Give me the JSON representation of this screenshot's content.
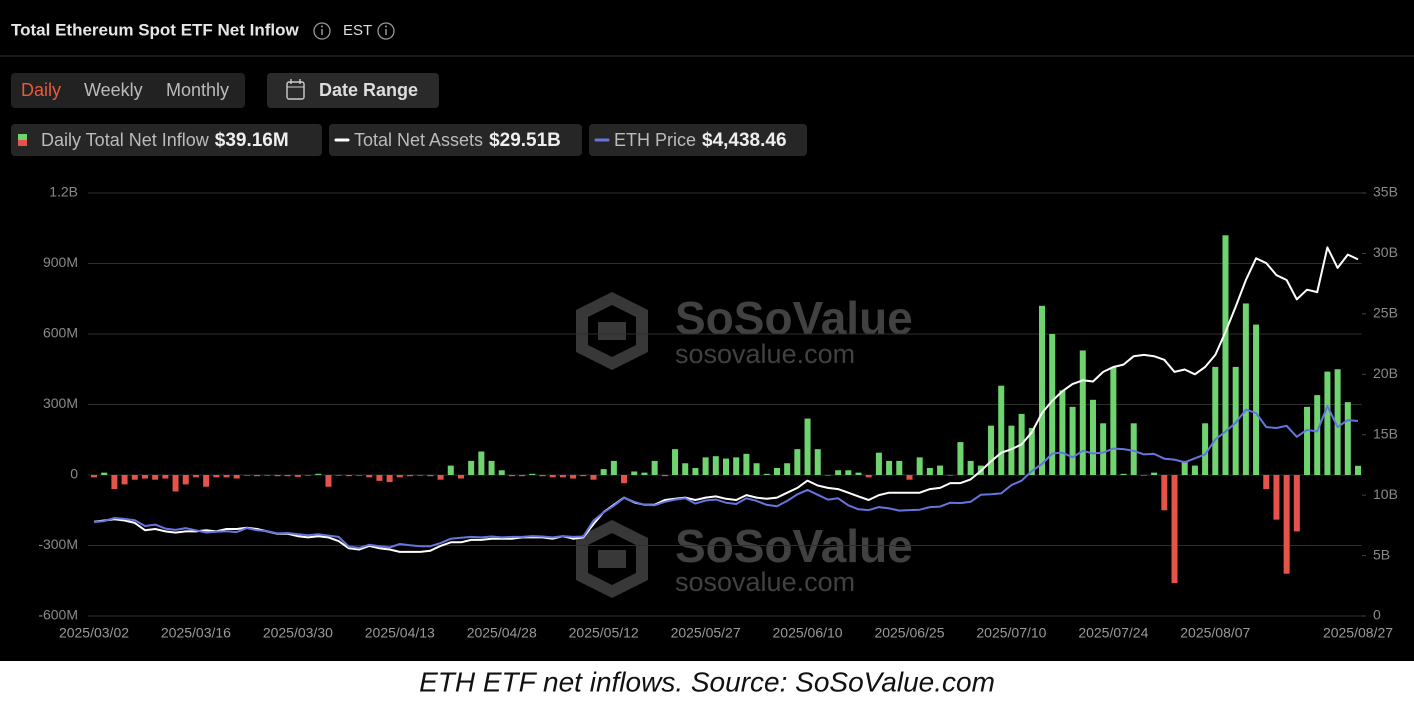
{
  "header": {
    "title": "Total Ethereum Spot ETF Net Inflow",
    "timezone": "EST"
  },
  "tabs": [
    "Daily",
    "Weekly",
    "Monthly"
  ],
  "date_range": "Date Range",
  "watermark": {
    "brand": "SoSoValue",
    "url": "sosovalue.com"
  },
  "chart_data": {
    "type": "combo",
    "categories": [
      "2025/03/02",
      null,
      null,
      null,
      null,
      null,
      null,
      null,
      null,
      null,
      "2025/03/16",
      null,
      null,
      null,
      null,
      null,
      null,
      null,
      null,
      null,
      "2025/03/30",
      null,
      null,
      null,
      null,
      null,
      null,
      null,
      null,
      null,
      "2025/04/13",
      null,
      null,
      null,
      null,
      null,
      null,
      null,
      null,
      null,
      "2025/04/28",
      null,
      null,
      null,
      null,
      null,
      null,
      null,
      null,
      null,
      "2025/05/12",
      null,
      null,
      null,
      null,
      null,
      null,
      null,
      null,
      null,
      "2025/05/27",
      null,
      null,
      null,
      null,
      null,
      null,
      null,
      null,
      null,
      "2025/06/10",
      null,
      null,
      null,
      null,
      null,
      null,
      null,
      null,
      null,
      "2025/06/25",
      null,
      null,
      null,
      null,
      null,
      null,
      null,
      null,
      null,
      "2025/07/10",
      null,
      null,
      null,
      null,
      null,
      null,
      null,
      null,
      null,
      "2025/07/24",
      null,
      null,
      null,
      null,
      null,
      null,
      null,
      null,
      null,
      "2025/08/07",
      null,
      null,
      null,
      null,
      null,
      null,
      null,
      null,
      null,
      null,
      null,
      null,
      null,
      "2025/08/27"
    ],
    "ylim": [
      -600,
      1200
    ],
    "yticks": [
      {
        "value": 1200,
        "label": "1.2B"
      },
      {
        "value": 900,
        "label": "900M"
      },
      {
        "value": 600,
        "label": "600M"
      },
      {
        "value": 300,
        "label": "300M"
      },
      0,
      {
        "value": -300,
        "label": "-300M"
      },
      {
        "value": -600,
        "label": "-600M"
      }
    ],
    "y2lim": [
      0,
      35
    ],
    "y2ticks": [
      {
        "value": 35,
        "label": "35B"
      },
      {
        "value": 30,
        "label": "30B"
      },
      {
        "value": 25,
        "label": "25B"
      },
      {
        "value": 20,
        "label": "20B"
      },
      {
        "value": 15,
        "label": "15B"
      },
      {
        "value": 10,
        "label": "10B"
      },
      {
        "value": 5,
        "label": "5B"
      },
      0
    ],
    "y3lim": [
      0,
      9630
    ],
    "grid": true,
    "series": [
      {
        "name": "Daily Total Net Inflow",
        "type": "bar",
        "color": "#6fd46f",
        "negative_color": "#e5534b",
        "legend_value": "$39.16M",
        "values": [
          -10,
          10,
          -60,
          -40,
          -20,
          -15,
          -20,
          -15,
          -70,
          -40,
          -10,
          -50,
          -10,
          -10,
          -15,
          -3,
          -5,
          -3,
          -5,
          -5,
          -8,
          0,
          5,
          -50,
          -3,
          -5,
          -3,
          -10,
          -25,
          -30,
          -10,
          -5,
          -3,
          -5,
          -20,
          40,
          -15,
          60,
          100,
          60,
          20,
          -5,
          -5,
          5,
          -5,
          -10,
          -10,
          -15,
          -5,
          -20,
          25,
          60,
          -35,
          15,
          10,
          60,
          -5,
          110,
          50,
          30,
          75,
          80,
          70,
          75,
          90,
          50,
          5,
          30,
          50,
          110,
          240,
          110,
          0,
          20,
          20,
          10,
          -10,
          95,
          60,
          60,
          -20,
          75,
          30,
          40,
          0,
          140,
          60,
          40,
          210,
          380,
          210,
          260,
          200,
          720,
          600,
          360,
          290,
          530,
          320,
          220,
          460,
          5,
          220,
          0,
          10,
          -150,
          -460,
          60,
          40,
          220,
          460,
          1020,
          460,
          730,
          640,
          -60,
          -190,
          -420,
          -240,
          290,
          340,
          440,
          450,
          310,
          39.16
        ]
      },
      {
        "name": "Total Net Assets",
        "type": "line",
        "axis": "y2",
        "color": "#ffffff",
        "legend_value": "$29.51B",
        "values": [
          7.8,
          7.9,
          8.0,
          7.9,
          7.7,
          7.1,
          7.2,
          7.0,
          6.9,
          7.0,
          7.0,
          7.1,
          7.0,
          7.2,
          7.2,
          7.3,
          7.2,
          7.0,
          6.8,
          6.8,
          6.6,
          6.5,
          6.6,
          6.5,
          6.2,
          5.6,
          5.5,
          5.8,
          5.6,
          5.5,
          5.3,
          5.3,
          5.3,
          5.4,
          5.8,
          6.1,
          6.1,
          6.3,
          6.3,
          6.4,
          6.4,
          6.4,
          6.5,
          6.5,
          6.5,
          6.4,
          6.6,
          6.4,
          6.5,
          7.6,
          8.6,
          9.2,
          9.8,
          9.4,
          9.2,
          9.2,
          9.6,
          9.7,
          9.8,
          9.6,
          9.8,
          9.9,
          9.7,
          9.6,
          10.0,
          9.8,
          9.7,
          9.8,
          10.2,
          10.6,
          11.2,
          10.8,
          10.6,
          10.5,
          10.2,
          9.9,
          9.6,
          10.0,
          10.2,
          10.2,
          10.2,
          10.2,
          10.5,
          10.6,
          11.0,
          11.0,
          11.3,
          12.0,
          12.8,
          13.5,
          13.8,
          14.2,
          15.2,
          16.8,
          17.8,
          18.6,
          19.2,
          19.5,
          19.4,
          20.2,
          20.6,
          20.8,
          21.5,
          21.6,
          21.5,
          21.2,
          20.2,
          20.4,
          20.0,
          20.6,
          21.6,
          23.5,
          25.6,
          27.8,
          29.6,
          29.2,
          28.2,
          27.8,
          26.2,
          27.0,
          26.8,
          30.5,
          28.8,
          29.9,
          29.51
        ]
      },
      {
        "name": "ETH Price",
        "type": "line",
        "axis": "y3",
        "color": "#6674e0",
        "legend_value": "$4,438.46",
        "values": [
          2140,
          2160,
          2230,
          2210,
          2180,
          2050,
          2080,
          1990,
          1960,
          2000,
          1950,
          1900,
          1920,
          1930,
          1910,
          2000,
          1950,
          1930,
          1880,
          1890,
          1860,
          1840,
          1860,
          1830,
          1800,
          1580,
          1550,
          1620,
          1590,
          1560,
          1640,
          1610,
          1590,
          1590,
          1660,
          1760,
          1780,
          1800,
          1790,
          1810,
          1790,
          1800,
          1800,
          1820,
          1810,
          1790,
          1820,
          1800,
          1810,
          2170,
          2360,
          2510,
          2690,
          2600,
          2530,
          2520,
          2600,
          2650,
          2680,
          2560,
          2630,
          2650,
          2580,
          2550,
          2680,
          2620,
          2530,
          2500,
          2620,
          2770,
          2870,
          2760,
          2650,
          2680,
          2520,
          2430,
          2410,
          2480,
          2450,
          2400,
          2410,
          2420,
          2480,
          2490,
          2580,
          2570,
          2600,
          2760,
          2770,
          2790,
          2980,
          3080,
          3300,
          3460,
          3700,
          3720,
          3610,
          3760,
          3700,
          3720,
          3810,
          3800,
          3760,
          3680,
          3690,
          3580,
          3560,
          3500,
          3590,
          3680,
          4020,
          4200,
          4400,
          4700,
          4620,
          4300,
          4280,
          4330,
          4080,
          4240,
          4200,
          4780,
          4300,
          4460,
          4438.46
        ]
      }
    ]
  },
  "caption": "ETH ETF net inflows. Source: SoSoValue.com"
}
